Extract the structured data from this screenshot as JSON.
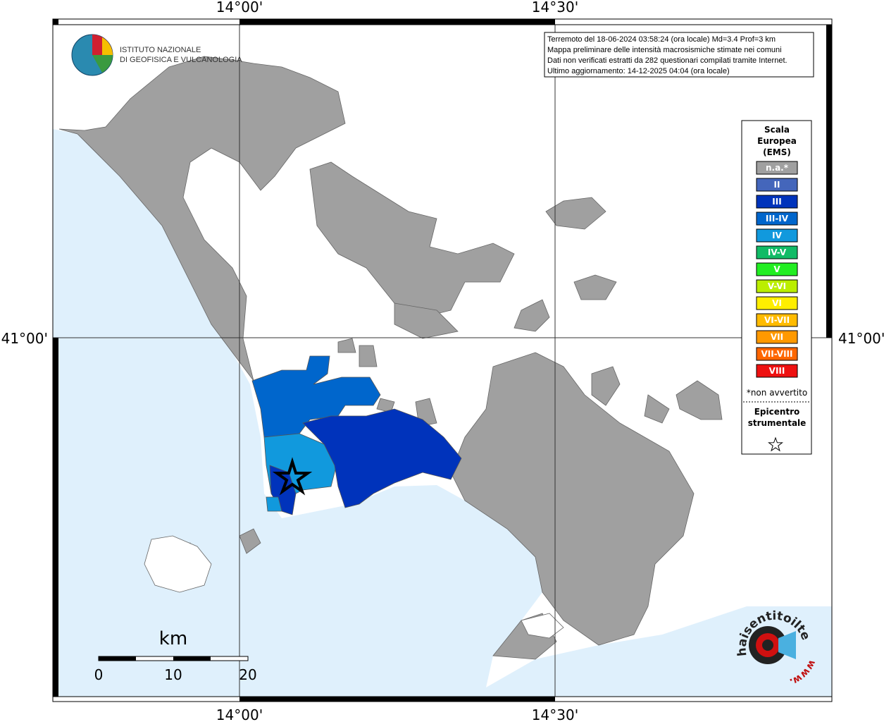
{
  "frame_labels": {
    "top": [
      "14°00'",
      "14°30'"
    ],
    "bottom": [
      "14°00'",
      "14°30'"
    ],
    "left": [
      "41°00'"
    ],
    "right": [
      "41°00'"
    ]
  },
  "logo": {
    "lines": [
      "ISTITUTO NAZIONALE",
      "DI GEOFISICA E VULCANOLOGIA"
    ]
  },
  "info": {
    "lines": [
      "Terremoto del 18-06-2024 03:58:24 (ora locale) Md=3.4 Prof=3 km",
      "Mappa preliminare delle intensità macrosismiche stimate nei comuni",
      "Dati non verificati estratti da 282 questionari compilati tramite Internet.",
      "Ultimo aggiornamento: 14-12-2025 04:04 (ora locale)"
    ]
  },
  "legend": {
    "title": [
      "Scala",
      "Europea",
      "(EMS)"
    ],
    "classes": [
      {
        "label": "n.a.*",
        "color": "#a0a0a0"
      },
      {
        "label": "II",
        "color": "#4466bb"
      },
      {
        "label": "III",
        "color": "#0033bb"
      },
      {
        "label": "III-IV",
        "color": "#0066cc"
      },
      {
        "label": "IV",
        "color": "#1199dd"
      },
      {
        "label": "IV-V",
        "color": "#11bb66"
      },
      {
        "label": "V",
        "color": "#22ee22"
      },
      {
        "label": "V-VI",
        "color": "#bbee00"
      },
      {
        "label": "VI",
        "color": "#ffee00"
      },
      {
        "label": "VI-VII",
        "color": "#ffbb00"
      },
      {
        "label": "VII",
        "color": "#ff9900"
      },
      {
        "label": "VII-VIII",
        "color": "#ff6600"
      },
      {
        "label": "VIII",
        "color": "#ee1111"
      }
    ],
    "note": "*non avvertito",
    "epicenter": [
      "Epicentro",
      "strumentale"
    ]
  },
  "scale_bar": {
    "unit": "km",
    "labels": [
      "0",
      "10",
      "20"
    ]
  },
  "watermark": {
    "main": "haisentitoilterremoto.it",
    "prefix": "www."
  }
}
